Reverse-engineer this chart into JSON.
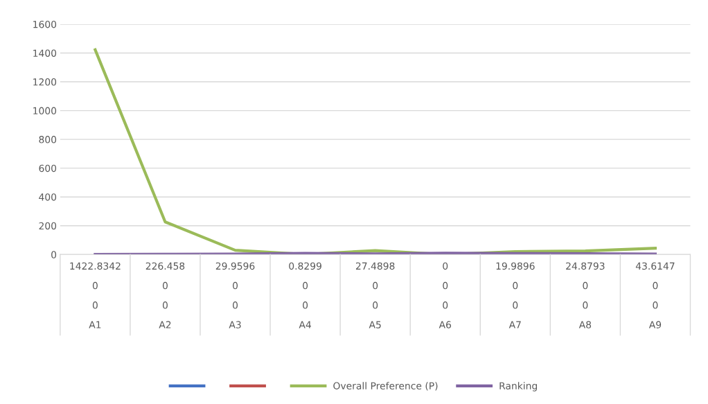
{
  "chart_data": {
    "type": "line",
    "categories": [
      "1422.8342\n0\n0\nA1",
      "226.458\n0\n0\nA2",
      "29.9596\n0\n0\nA3",
      "0.8299\n0\n0\nA4",
      "27.4898\n0\n0\nA5",
      "0\n0\n0\nA6",
      "19.9896\n0\n0\nA7",
      "24.8793\n0\n0\nA8",
      "43.6147\n0\n0\nA9"
    ],
    "series": [
      {
        "color": "#4472c4",
        "values": [
          null,
          null,
          null,
          null,
          null,
          null,
          null,
          null,
          null
        ]
      },
      {
        "color": "#c0504d",
        "values": [
          null,
          null,
          null,
          null,
          null,
          null,
          null,
          null,
          null
        ]
      },
      {
        "name": "Overall Preference (P)",
        "color": "#9bbb59",
        "values": [
          1422.8342,
          226.458,
          29.9596,
          0.8299,
          27.4898,
          0,
          19.9896,
          24.8793,
          43.6147
        ]
      },
      {
        "name": "Ranking",
        "color": "#8064a2",
        "values": [
          1,
          2,
          4,
          8,
          5,
          9,
          7,
          6,
          3
        ]
      }
    ],
    "ylim": [
      0,
      1600
    ],
    "yticks": [
      0,
      200,
      400,
      600,
      800,
      1000,
      1200,
      1400,
      1600
    ],
    "grid": "y",
    "legend": "bottom",
    "marker": "none",
    "line_style": "solid"
  }
}
